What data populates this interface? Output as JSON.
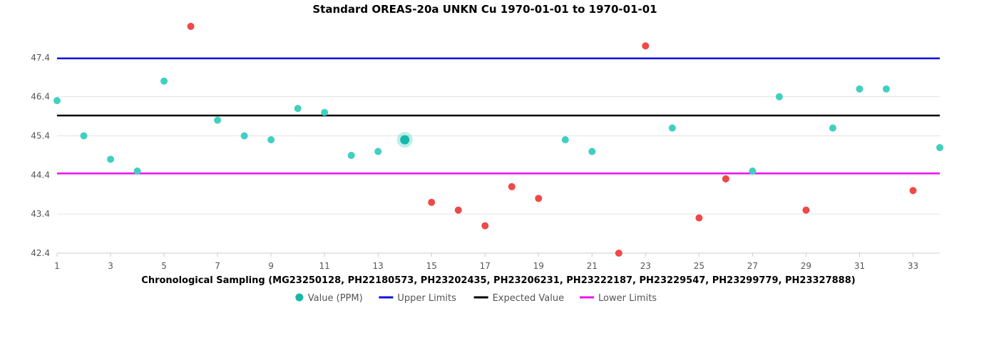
{
  "chart_data": {
    "type": "scatter",
    "title": "Standard OREAS-20a UNKN Cu 1970-01-01 to 1970-01-01",
    "xlabel": "Chronological Sampling (MG23250128, PH22180573, PH23202435, PH23206231, PH23222187, PH23229547, PH23299779, PH23327888)",
    "ylabel": "",
    "xlim": [
      1,
      34
    ],
    "ylim": [
      42.4,
      48.4
    ],
    "x_ticks": [
      1,
      3,
      5,
      7,
      9,
      11,
      13,
      15,
      17,
      19,
      21,
      23,
      25,
      27,
      29,
      31,
      33
    ],
    "y_ticks": [
      42.4,
      43.4,
      44.4,
      45.4,
      46.4,
      47.4
    ],
    "y_tick_labels": [
      "42.4",
      "43.4",
      "44.4",
      "45.4",
      "46.4",
      "47.4"
    ],
    "series": [
      {
        "name": "Value (PPM)",
        "color": "#3fd0c0",
        "outlier_color": "#f04848",
        "highlight_color": "#14b8a8",
        "highlight_index": 13,
        "x": [
          1,
          2,
          3,
          4,
          5,
          6,
          7,
          8,
          9,
          10,
          11,
          12,
          13,
          14,
          15,
          16,
          17,
          18,
          19,
          20,
          21,
          22,
          23,
          24,
          25,
          26,
          27,
          28,
          29,
          30,
          31,
          32,
          33,
          34
        ],
        "values": [
          46.3,
          45.4,
          44.8,
          44.5,
          46.8,
          48.2,
          45.8,
          45.4,
          45.3,
          46.1,
          46.0,
          44.9,
          45.0,
          45.3,
          43.7,
          43.5,
          43.1,
          44.1,
          43.8,
          45.3,
          45.0,
          42.4,
          47.7,
          45.6,
          43.3,
          44.3,
          44.5,
          46.4,
          43.5,
          45.6,
          46.6,
          46.6,
          44.0,
          45.1
        ],
        "outliers": [
          6,
          15,
          16,
          17,
          18,
          19,
          22,
          23,
          25,
          26,
          29,
          33
        ]
      }
    ],
    "reference_lines": [
      {
        "name": "Upper Limits",
        "value": 47.38,
        "color": "#1010e0"
      },
      {
        "name": "Expected Value",
        "value": 45.92,
        "color": "#000000"
      },
      {
        "name": "Lower Limits",
        "value": 44.44,
        "color": "#ee10ee"
      }
    ],
    "legend": {
      "position": "bottom",
      "entries": [
        "Value (PPM)",
        "Upper Limits",
        "Expected Value",
        "Lower Limits"
      ]
    },
    "grid": true
  }
}
